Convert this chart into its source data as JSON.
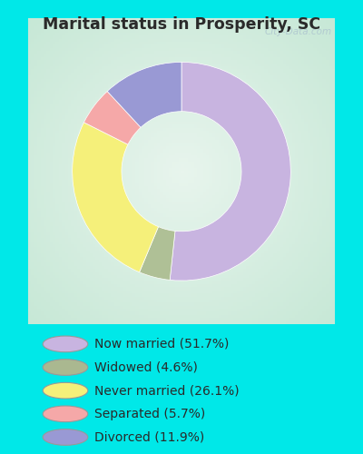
{
  "title": "Marital status in Prosperity, SC",
  "slices": [
    51.7,
    4.6,
    26.1,
    5.7,
    11.9
  ],
  "colors": [
    "#c8b4e0",
    "#afc096",
    "#f5f07a",
    "#f5a8a8",
    "#9999d4"
  ],
  "labels": [
    "Now married (51.7%)",
    "Widowed (4.6%)",
    "Never married (26.1%)",
    "Separated (5.7%)",
    "Divorced (11.9%)"
  ],
  "legend_marker_colors": [
    "#c8b4e0",
    "#aab890",
    "#f5f07a",
    "#f5a8a8",
    "#9999d4"
  ],
  "bg_outer": "#00e8e8",
  "bg_chart_center": "#e8f5ee",
  "bg_chart_edge": "#c8e8d8",
  "watermark": "City-Data.com",
  "start_angle": 90,
  "outer_r": 0.82,
  "inner_r": 0.45,
  "title_color": "#2a2a2a",
  "legend_text_color": "#2a2a2a"
}
